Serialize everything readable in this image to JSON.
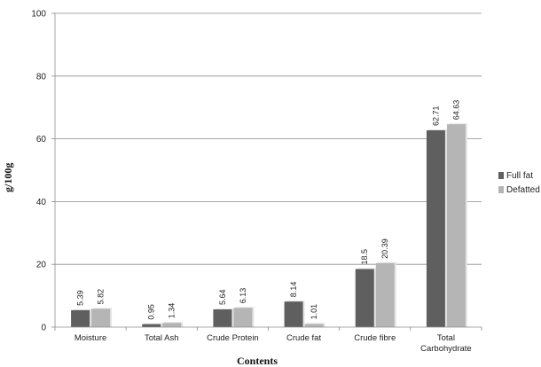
{
  "chart_data": {
    "type": "bar",
    "categories": [
      "Moisture",
      "Total Ash",
      "Crude Protein",
      "Crude fat",
      "Crude fibre",
      "Total\nCarbohydrate"
    ],
    "series": [
      {
        "name": "Full fat",
        "values": [
          5.39,
          0.95,
          5.64,
          8.14,
          18.5,
          62.71
        ],
        "labels": [
          "5.39",
          "0.95",
          "5.64",
          "8.14",
          "18.5",
          "62.71"
        ],
        "color": "#5f5f5f"
      },
      {
        "name": "Defatted",
        "values": [
          5.82,
          1.34,
          6.13,
          1.01,
          20.39,
          64.63
        ],
        "labels": [
          "5.82",
          "1.34",
          "6.13",
          "1.01",
          "20.39",
          "64.63"
        ],
        "color": "#b5b5b5"
      }
    ],
    "title": "",
    "xlabel": "Contents",
    "ylabel": "g/100g",
    "ylim": [
      0,
      100
    ],
    "yticks": [
      0,
      20,
      40,
      60,
      80,
      100
    ],
    "grid": true,
    "legend_position": "right"
  }
}
